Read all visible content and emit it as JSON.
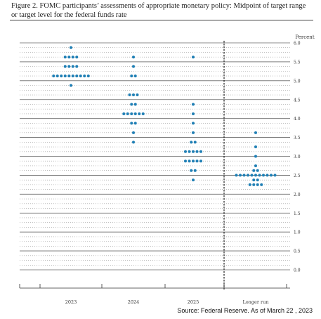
{
  "title": "Figure 2.  FOMC participants’ assessments of appropriate monetary policy:  Midpoint of target range or target level for the federal funds rate",
  "source": "Source: Federal Reserve. As of March 22 , 2023",
  "chart_data": {
    "type": "scatter",
    "subtype": "dot-plot",
    "unit_label": "Percent",
    "categories": [
      "2023",
      "2024",
      "2025",
      "Longer run"
    ],
    "ylim": [
      0.0,
      6.0
    ],
    "yticks": [
      "0.0",
      "0.5",
      "1.0",
      "1.5",
      "2.0",
      "2.5",
      "3.0",
      "3.5",
      "4.0",
      "4.5",
      "5.0",
      "5.5",
      "6.0"
    ],
    "grid": "dotted horizontal lines every 0.125, solid every 0.5",
    "separator_before": "Longer run",
    "dot_color": "#1f7fb5",
    "counts": [
      {
        "category": "2023",
        "points": [
          {
            "y": 5.875,
            "n": 1
          },
          {
            "y": 5.625,
            "n": 4
          },
          {
            "y": 5.375,
            "n": 4
          },
          {
            "y": 5.125,
            "n": 10
          },
          {
            "y": 4.875,
            "n": 1
          }
        ]
      },
      {
        "category": "2024",
        "points": [
          {
            "y": 5.625,
            "n": 1
          },
          {
            "y": 5.375,
            "n": 1
          },
          {
            "y": 5.125,
            "n": 2
          },
          {
            "y": 4.625,
            "n": 3
          },
          {
            "y": 4.375,
            "n": 2
          },
          {
            "y": 4.125,
            "n": 6
          },
          {
            "y": 3.875,
            "n": 2
          },
          {
            "y": 3.625,
            "n": 1
          },
          {
            "y": 3.375,
            "n": 1
          }
        ]
      },
      {
        "category": "2025",
        "points": [
          {
            "y": 5.625,
            "n": 1
          },
          {
            "y": 4.375,
            "n": 1
          },
          {
            "y": 4.125,
            "n": 1
          },
          {
            "y": 3.875,
            "n": 1
          },
          {
            "y": 3.625,
            "n": 1
          },
          {
            "y": 3.375,
            "n": 2
          },
          {
            "y": 3.125,
            "n": 5
          },
          {
            "y": 2.875,
            "n": 5
          },
          {
            "y": 2.625,
            "n": 2
          },
          {
            "y": 2.375,
            "n": 1
          }
        ]
      },
      {
        "category": "Longer run",
        "points": [
          {
            "y": 3.625,
            "n": 1
          },
          {
            "y": 3.25,
            "n": 1
          },
          {
            "y": 3.0,
            "n": 1
          },
          {
            "y": 2.75,
            "n": 1
          },
          {
            "y": 2.625,
            "n": 2
          },
          {
            "y": 2.5,
            "n": 11
          },
          {
            "y": 2.375,
            "n": 2
          },
          {
            "y": 2.25,
            "n": 4
          }
        ]
      }
    ]
  }
}
